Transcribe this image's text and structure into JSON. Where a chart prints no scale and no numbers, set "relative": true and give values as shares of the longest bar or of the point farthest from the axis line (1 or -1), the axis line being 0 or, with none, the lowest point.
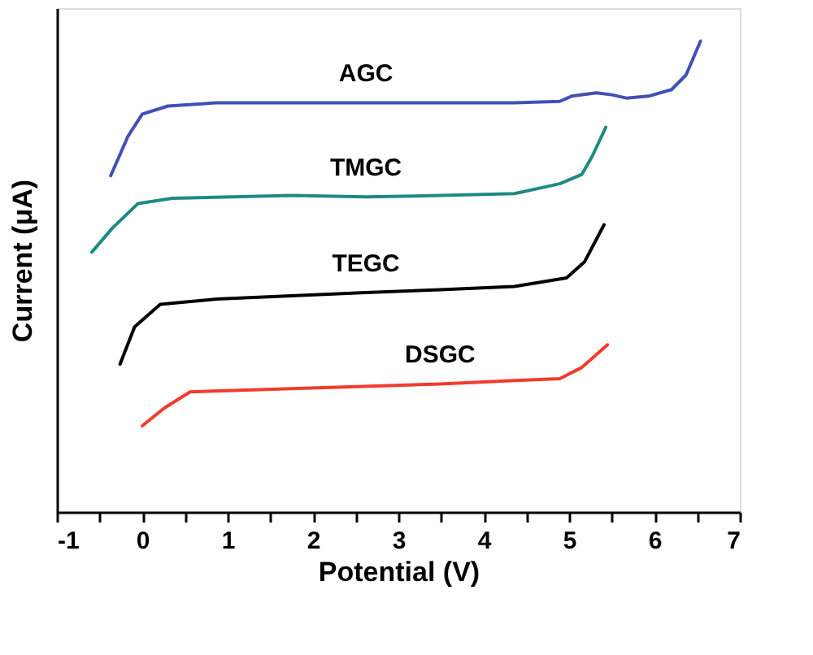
{
  "chart_data": {
    "type": "line",
    "relative": true,
    "xlabel": "Potential (V)",
    "ylabel": "Current (μA)",
    "xlim": [
      -1,
      7
    ],
    "xticks": [
      -1,
      {
        "value": -0.5,
        "label": null
      },
      0,
      {
        "value": 0.5,
        "label": null
      },
      1,
      {
        "value": 1.5,
        "label": null
      },
      2,
      {
        "value": 2.5,
        "label": null
      },
      3,
      {
        "value": 3.5,
        "label": null
      },
      4,
      {
        "value": 4.5,
        "label": null
      },
      5,
      {
        "value": 5.5,
        "label": null
      },
      6,
      {
        "value": 6.5,
        "label": null
      },
      7
    ],
    "tick_labels": "x",
    "grid": false,
    "marker": "none",
    "line_style": "solid",
    "series": [
      {
        "name": "AGC",
        "color": "#3f51b5",
        "x": [
          -0.37,
          -0.17,
          0,
          0.3,
          0.87,
          2.62,
          4.36,
          4.89,
          5.03,
          5.32,
          5.5,
          5.67,
          5.93,
          6.2,
          6.37,
          6.54
        ],
        "values": [
          0.714,
          0.797,
          0.845,
          0.862,
          0.869,
          0.869,
          0.869,
          0.872,
          0.883,
          0.89,
          0.886,
          0.879,
          0.883,
          0.897,
          0.928,
          1
        ]
      },
      {
        "name": "TMGC",
        "color": "#1e8a82",
        "x": [
          -0.59,
          -0.35,
          -0.05,
          0.35,
          1.75,
          2.62,
          3.49,
          4.36,
          4.89,
          5.15,
          5.27,
          5.43
        ],
        "values": [
          0.552,
          0.603,
          0.655,
          0.666,
          0.672,
          0.669,
          0.672,
          0.676,
          0.697,
          0.717,
          0.755,
          0.817
        ]
      },
      {
        "name": "TEGC",
        "color": "#000000",
        "x": [
          -0.26,
          -0.09,
          0.21,
          0.87,
          2.62,
          3.49,
          4.36,
          4.97,
          5.18,
          5.41
        ],
        "values": [
          0.314,
          0.393,
          0.441,
          0.452,
          0.466,
          0.472,
          0.479,
          0.497,
          0.531,
          0.61
        ]
      },
      {
        "name": "DSGC",
        "color": "#f03c2e",
        "x": [
          0,
          0.26,
          0.56,
          1.75,
          3.49,
          4.36,
          4.89,
          5.15,
          5.45
        ],
        "values": [
          0.183,
          0.221,
          0.255,
          0.262,
          0.272,
          0.279,
          0.283,
          0.307,
          0.355
        ]
      }
    ]
  }
}
